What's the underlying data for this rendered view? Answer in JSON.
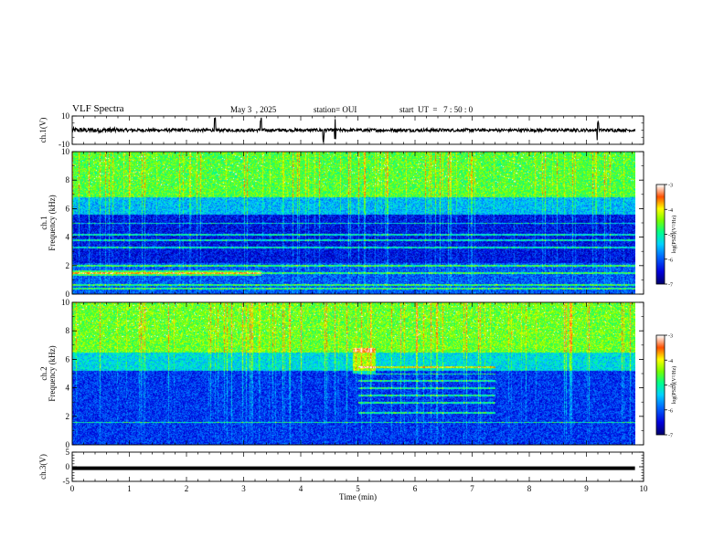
{
  "header": {
    "title": "VLF Spectra",
    "date": "May 3  , 2025",
    "station": "station= OUI",
    "start": "start  UT  =   7 : 50 : 0"
  },
  "chart_data": [
    {
      "type": "line",
      "id": "ch1-waveform",
      "ylabel": "ch.1(V)",
      "ylim": [
        -10,
        10
      ],
      "yticks": [
        10,
        -10
      ],
      "xlim": [
        0,
        10
      ],
      "baseline": 0,
      "description_values": {
        "typical_amplitude_V": 1.0,
        "spikes_at_min": [
          2.5,
          3.3,
          4.4,
          4.6,
          9.2
        ]
      }
    },
    {
      "type": "heatmap",
      "id": "ch1-spectrogram",
      "ylabel": "ch.1\nFrequency (kHz)",
      "ylabel_line1": "ch.1",
      "ylabel_line2": "Frequency (kHz)",
      "xlim": [
        0,
        9.85
      ],
      "ylim": [
        0,
        10
      ],
      "yticks": [
        0,
        2,
        4,
        6,
        8,
        10
      ],
      "colorbar": {
        "label": "log(PSD)(V²/Hz)",
        "range": [
          -7,
          -3
        ],
        "ticks": [
          -3,
          -4,
          -5,
          -6,
          -7
        ],
        "colors": [
          "#000080",
          "#0000ff",
          "#00c8ff",
          "#00ff80",
          "#ffff00",
          "#ff4000",
          "#ffffff"
        ]
      },
      "bands": [
        {
          "f_low": 6.8,
          "f_high": 10,
          "level": -4.6
        },
        {
          "f_low": 5.6,
          "f_high": 6.8,
          "level": -5.5
        },
        {
          "f_low": 2.2,
          "f_high": 5.6,
          "level": -6.4
        },
        {
          "f_low": 0,
          "f_high": 2.2,
          "level": -6.0
        }
      ],
      "tones_kHz": [
        0.4,
        0.7,
        1.5,
        2.0,
        3.3,
        3.8,
        4.2,
        5.0
      ]
    },
    {
      "type": "heatmap",
      "id": "ch2-spectrogram",
      "ylabel": "ch.2\nFrequency (kHz)",
      "ylabel_line1": "ch.2",
      "ylabel_line2": "Frequency (kHz)",
      "xlim": [
        0,
        9.85
      ],
      "ylim": [
        0,
        10
      ],
      "yticks": [
        0,
        2,
        4,
        6,
        8,
        10
      ],
      "colorbar": {
        "label": "log(PSD)(V²/Hz)",
        "range": [
          -7,
          -3
        ],
        "ticks": [
          -3,
          -4,
          -5,
          -6,
          -7
        ],
        "colors": [
          "#000080",
          "#0000ff",
          "#00c8ff",
          "#00ff80",
          "#ffff00",
          "#ff4000",
          "#ffffff"
        ]
      },
      "bands": [
        {
          "f_low": 6.5,
          "f_high": 10,
          "level": -4.5
        },
        {
          "f_low": 5.2,
          "f_high": 6.5,
          "level": -5.3
        },
        {
          "f_low": 0,
          "f_high": 5.2,
          "level": -6.2
        }
      ],
      "tones_kHz": [
        1.6,
        2.3,
        3.0,
        3.5,
        4.0,
        4.5,
        5.0,
        5.5
      ]
    },
    {
      "type": "line",
      "id": "ch3-waveform",
      "ylabel": "ch.3(V)",
      "ylim": [
        -5,
        5
      ],
      "yticks": [
        5,
        0,
        -5
      ],
      "xlim": [
        0,
        10
      ],
      "x": [
        0,
        9.85
      ],
      "y": [
        -0.5,
        -0.5
      ],
      "xlabel": "Time  (min)",
      "xticks": [
        0,
        1,
        2,
        3,
        4,
        5,
        6,
        7,
        8,
        9,
        10
      ]
    }
  ]
}
